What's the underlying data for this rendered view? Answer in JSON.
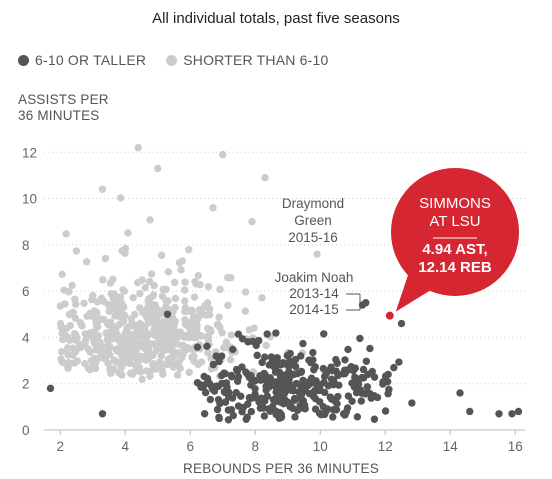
{
  "chart_data": {
    "type": "scatter",
    "title": "All individual totals, past five seasons",
    "xlabel": "REBOUNDS PER 36 MINUTES",
    "ylabel": "ASSISTS PER\n36 MINUTES",
    "xlim": [
      1.5,
      16.3
    ],
    "ylim": [
      0,
      12.4
    ],
    "x_ticks": [
      "2",
      "4",
      "6",
      "8",
      "10",
      "12",
      "14",
      "16"
    ],
    "y_ticks": [
      "0",
      "2",
      "4",
      "6",
      "8",
      "10",
      "12"
    ],
    "grid": "horizontal dotted",
    "legend_position": "top-left",
    "series": [
      {
        "name": "6-10 OR TALLER",
        "color": "#555555",
        "count": 330,
        "cluster_center": [
          9.3,
          1.9
        ],
        "note": "dense cluster, rebounds ~6-16, assists ~0.5-4.5"
      },
      {
        "name": "SHORTER THAN 6-10",
        "color": "#cccccc",
        "count": 560,
        "cluster_center": [
          4.6,
          3.2
        ],
        "note": "dense cluster, rebounds ~2-9, assists ~0.5-12"
      }
    ],
    "highlight": {
      "label_line1": "SIMMONS",
      "label_line2": "AT LSU",
      "value_line1": "4.94 AST,",
      "value_line2": "12.14 REB",
      "x": 12.14,
      "y": 4.94,
      "color": "#d62632"
    },
    "annotations": [
      {
        "lines": [
          "Draymond",
          "Green",
          "2015-16"
        ],
        "x": 10.0,
        "y": 7.6
      },
      {
        "lines": [
          "Joakim Noah",
          "2013-14",
          "2014-15"
        ],
        "x": 11.3,
        "y": 5.4
      }
    ]
  }
}
